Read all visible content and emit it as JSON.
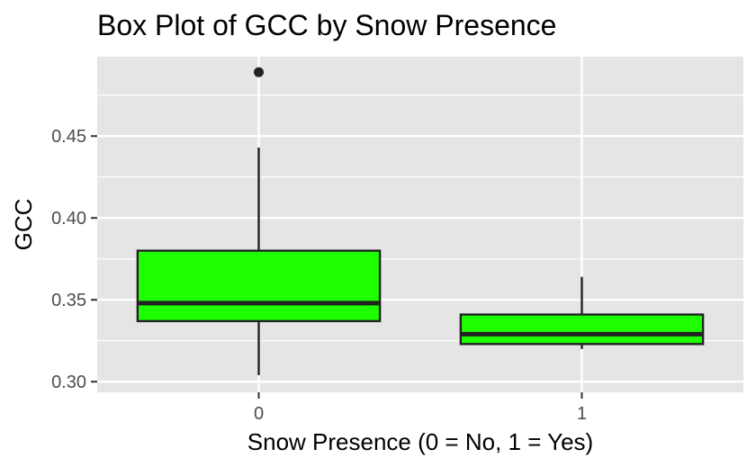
{
  "chart_data": {
    "type": "box",
    "title": "Box Plot of GCC by Snow Presence",
    "xlabel": "Snow Presence (0 = No, 1 = Yes)",
    "ylabel": "GCC",
    "categories": [
      "0",
      "1"
    ],
    "yticks": [
      0.3,
      0.35,
      0.4,
      0.45
    ],
    "ytick_labels": [
      "0.30",
      "0.35",
      "0.40",
      "0.45"
    ],
    "ylim": [
      0.2935,
      0.4985
    ],
    "grid": true,
    "legend": "none",
    "boxes": [
      {
        "category": "0",
        "lower_whisker": 0.304,
        "q1": 0.337,
        "median": 0.348,
        "q3": 0.38,
        "upper_whisker": 0.443,
        "outliers": [
          0.489
        ]
      },
      {
        "category": "1",
        "lower_whisker": 0.32,
        "q1": 0.323,
        "median": 0.329,
        "q3": 0.341,
        "upper_whisker": 0.364,
        "outliers": []
      }
    ],
    "colors": {
      "panel": "#e5e5e5",
      "grid": "#ffffff",
      "box_fill": "#1eff00",
      "box_stroke": "#222222",
      "outlier": "#222222",
      "tick": "#333333"
    }
  }
}
